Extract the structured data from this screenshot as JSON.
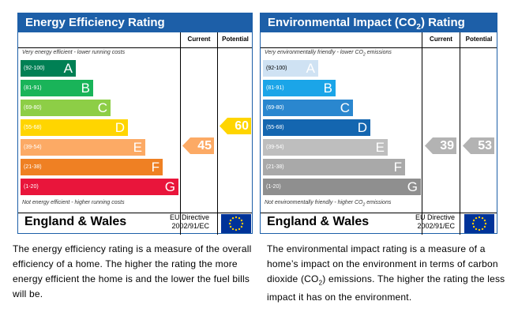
{
  "energy_efficiency": {
    "title": "Energy Efficiency Rating",
    "col_current": "Current",
    "col_potential": "Potential",
    "top_note": "Very energy efficient - lower running costs",
    "bottom_note": "Not energy efficient - higher running costs",
    "bands": [
      {
        "range": "(92-100)",
        "letter": "A",
        "color": "#008054"
      },
      {
        "range": "(81-91)",
        "letter": "B",
        "color": "#19b459"
      },
      {
        "range": "(69-80)",
        "letter": "C",
        "color": "#8dce46"
      },
      {
        "range": "(55-68)",
        "letter": "D",
        "color": "#ffd500"
      },
      {
        "range": "(39-54)",
        "letter": "E",
        "color": "#fcaa65"
      },
      {
        "range": "(21-38)",
        "letter": "F",
        "color": "#ef8023"
      },
      {
        "range": "(1-20)",
        "letter": "G",
        "color": "#e9153b"
      }
    ],
    "current": "45",
    "current_color": "#fcaa65",
    "potential": "60",
    "potential_color": "#ffd500",
    "region": "England & Wales",
    "directive_line1": "EU Directive",
    "directive_line2": "2002/91/EC",
    "description": "The energy efficiency rating is a measure of the overall efficiency of a home. The higher the rating the more energy efficient the home is and the lower the fuel bills will be."
  },
  "environmental_impact": {
    "title_prefix": "Environmental Impact (CO",
    "title_sub": "2",
    "title_suffix": ") Rating",
    "col_current": "Current",
    "col_potential": "Potential",
    "top_note_prefix": "Very environmentally friendly - lower CO",
    "top_note_sub": "2",
    "top_note_suffix": " emissions",
    "bottom_note_prefix": "Not environmentally friendly - higher CO",
    "bottom_note_sub": "2",
    "bottom_note_suffix": " emissions",
    "bands": [
      {
        "range": "(92-100)",
        "letter": "A",
        "color": "#cfe2f3"
      },
      {
        "range": "(81-91)",
        "letter": "B",
        "color": "#1ba5e8"
      },
      {
        "range": "(69-80)",
        "letter": "C",
        "color": "#2a87cf"
      },
      {
        "range": "(55-68)",
        "letter": "D",
        "color": "#1466b0"
      },
      {
        "range": "(39-54)",
        "letter": "E",
        "color": "#bebebe"
      },
      {
        "range": "(21-38)",
        "letter": "F",
        "color": "#a9a9a9"
      },
      {
        "range": "(1-20)",
        "letter": "G",
        "color": "#8f8f8f"
      }
    ],
    "current": "39",
    "current_color": "#b3b3b3",
    "potential": "53",
    "potential_color": "#b3b3b3",
    "region": "England & Wales",
    "directive_line1": "EU Directive",
    "directive_line2": "2002/91/EC",
    "description_prefix": "The environmental impact rating is a measure of a home’s impact on the environment in terms of carbon dioxide (CO",
    "description_sub": "2",
    "description_suffix": ") emissions. The higher the rating the less impact it has on the environment."
  }
}
